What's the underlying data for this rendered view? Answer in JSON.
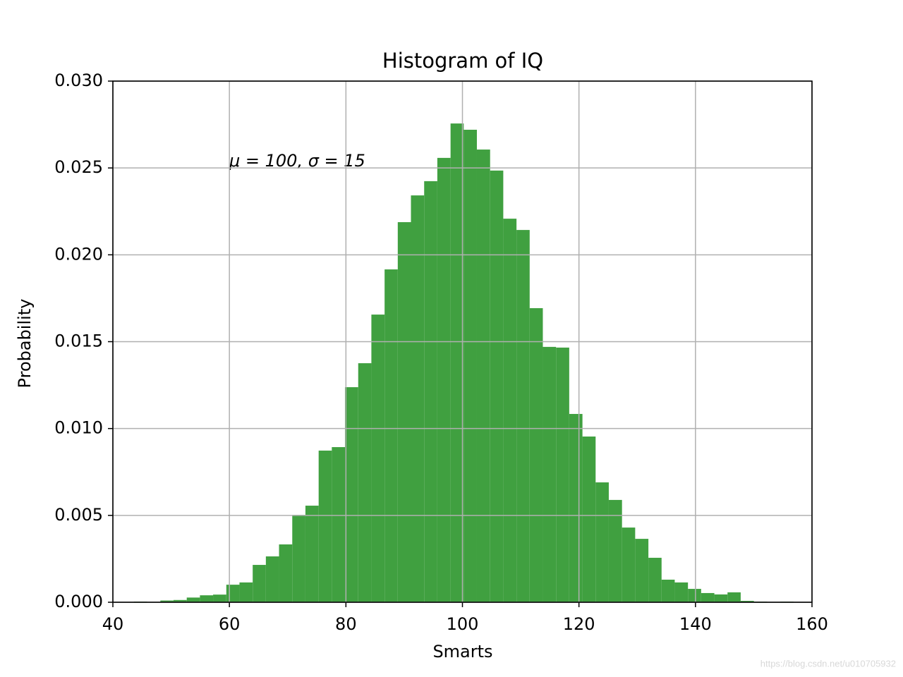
{
  "chart_data": {
    "type": "histogram",
    "title": "Histogram of IQ",
    "xlabel": "Smarts",
    "ylabel": "Probability",
    "annotation": "μ = 100,  σ = 15",
    "watermark": "https://blog.csdn.net/u010705932",
    "color": "#40a040",
    "grid": true,
    "bins": [
      43.62,
      45.88,
      48.15,
      50.41,
      52.68,
      54.94,
      57.2,
      59.47,
      61.73,
      64.0,
      66.26,
      68.52,
      70.79,
      73.05,
      75.32,
      77.58,
      79.84,
      82.11,
      84.37,
      86.64,
      88.9,
      91.16,
      93.43,
      95.69,
      97.96,
      100.22,
      102.48,
      104.75,
      107.01,
      109.28,
      111.54,
      113.8,
      116.07,
      118.33,
      120.6,
      122.86,
      125.12,
      127.39,
      129.65,
      131.92,
      134.18,
      136.44,
      138.71,
      140.97,
      143.24,
      145.5,
      147.76,
      150.03,
      152.29,
      154.56,
      156.82
    ],
    "values": [
      4e-05,
      0,
      0.0001,
      0.00013,
      0.00027,
      0.0004,
      0.00044,
      0.00101,
      0.00114,
      0.00215,
      0.00264,
      0.00333,
      0.00503,
      0.00556,
      0.00873,
      0.00893,
      0.01238,
      0.01376,
      0.01656,
      0.01916,
      0.02188,
      0.02342,
      0.02424,
      0.02558,
      0.02756,
      0.0272,
      0.02606,
      0.02485,
      0.02208,
      0.02143,
      0.01693,
      0.0147,
      0.01466,
      0.01084,
      0.00954,
      0.0069,
      0.00589,
      0.0043,
      0.00365,
      0.00256,
      0.0013,
      0.00114,
      0.00077,
      0.00053,
      0.00045,
      0.00057,
      8e-05,
      4e-05,
      0,
      4e-05
    ],
    "xlim": [
      40,
      160
    ],
    "xticks": [
      40,
      60,
      80,
      100,
      120,
      140,
      160
    ],
    "ylim": [
      0,
      0.03
    ],
    "yticks": [
      {
        "value": 0,
        "label": "0.000"
      },
      {
        "value": 0.005,
        "label": "0.005"
      },
      {
        "value": 0.01,
        "label": "0.010"
      },
      {
        "value": 0.015,
        "label": "0.015"
      },
      {
        "value": 0.02,
        "label": "0.020"
      },
      {
        "value": 0.025,
        "label": "0.025"
      },
      {
        "value": 0.03,
        "label": "0.030"
      }
    ]
  }
}
